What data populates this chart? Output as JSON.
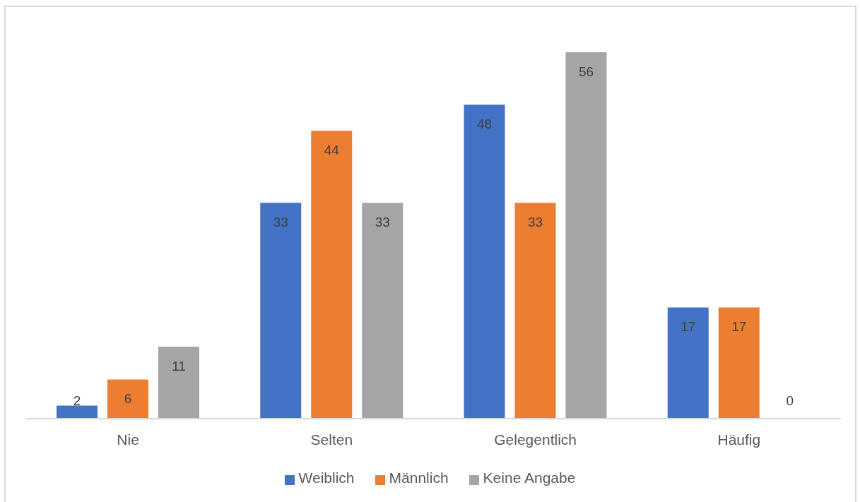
{
  "chart_data": {
    "type": "bar",
    "categories": [
      "Nie",
      "Selten",
      "Gelegentlich",
      "Häufig"
    ],
    "series": [
      {
        "name": "Weiblich",
        "color": "#4472c4",
        "values": [
          2,
          33,
          48,
          17
        ]
      },
      {
        "name": "Männlich",
        "color": "#ed7d31",
        "values": [
          6,
          44,
          33,
          17
        ]
      },
      {
        "name": "Keine Angabe",
        "color": "#a5a5a5",
        "values": [
          11,
          33,
          56,
          0
        ]
      }
    ],
    "data_labels": true,
    "legend": "bottom",
    "tick_labels": "x",
    "grid": false
  }
}
